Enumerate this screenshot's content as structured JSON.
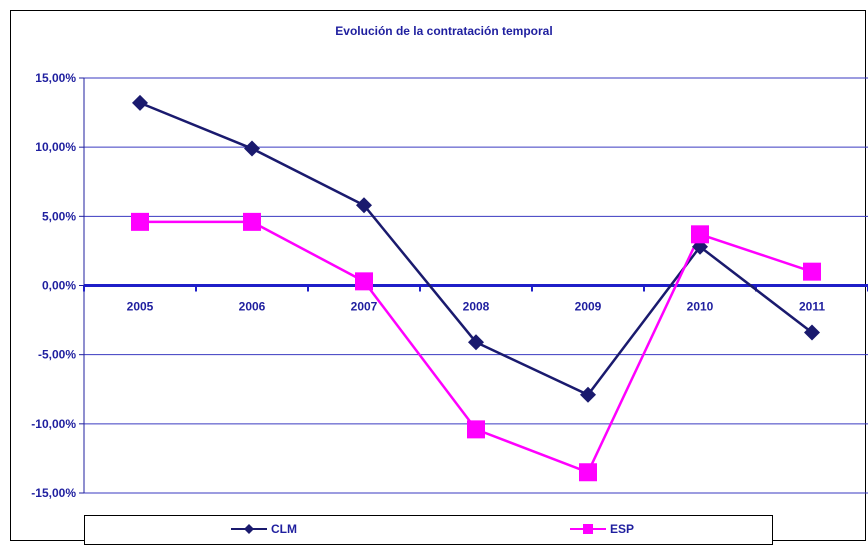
{
  "chart_data": {
    "type": "line",
    "title": "Evolución de la contratación temporal",
    "categories": [
      "2005",
      "2006",
      "2007",
      "2008",
      "2009",
      "2010",
      "2011"
    ],
    "yticks": [
      "15,00%",
      "10,00%",
      "5,00%",
      "0,00%",
      "-5,00%",
      "-10,00%",
      "-15,00%"
    ],
    "ylim": [
      -15,
      15
    ],
    "grid": true,
    "legend_position": "bottom",
    "series": [
      {
        "name": "CLM",
        "color": "#1a1a6e",
        "marker": "diamond",
        "values": [
          13.2,
          9.9,
          5.8,
          -4.1,
          -7.9,
          2.8,
          -3.4
        ]
      },
      {
        "name": "ESP",
        "color": "#ff00ff",
        "marker": "square",
        "values": [
          4.6,
          4.6,
          0.3,
          -10.4,
          -13.5,
          3.7,
          1.0
        ]
      }
    ]
  }
}
